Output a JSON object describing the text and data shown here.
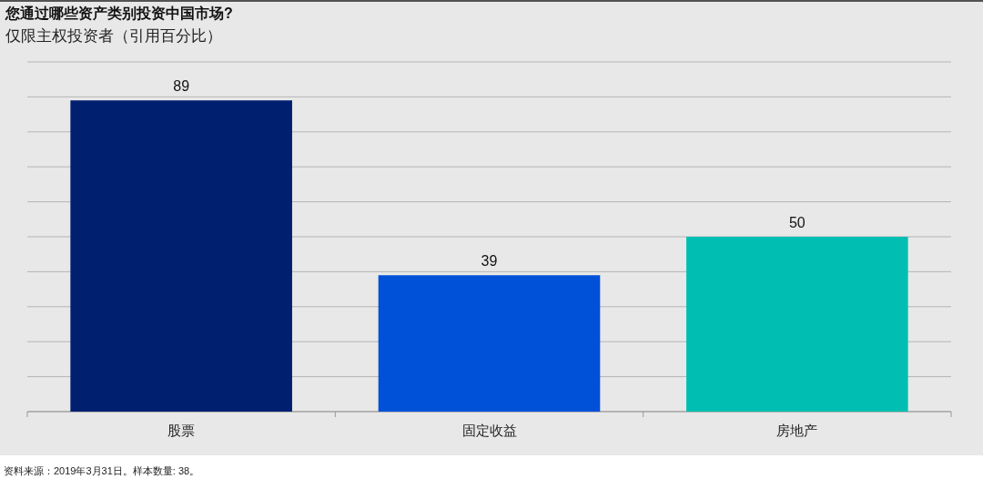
{
  "chart_data": {
    "type": "bar",
    "title": "您通过哪些资产类别投资中国市场?",
    "subtitle": "仅限主权投资者（引用百分比）",
    "categories": [
      "股票",
      "固定收益",
      "房地产"
    ],
    "values": [
      89,
      39,
      50
    ],
    "colors": [
      "#001f6e",
      "#0050d8",
      "#00bfb2"
    ],
    "ylim": [
      0,
      100
    ],
    "yticks": [
      {
        "value": 0,
        "label": null
      },
      {
        "value": 10,
        "label": null
      },
      {
        "value": 20,
        "label": null
      },
      {
        "value": 30,
        "label": null
      },
      {
        "value": 40,
        "label": null
      },
      {
        "value": 50,
        "label": null
      },
      {
        "value": 60,
        "label": null
      },
      {
        "value": 70,
        "label": null
      },
      {
        "value": 80,
        "label": null
      },
      {
        "value": 90,
        "label": null
      },
      {
        "value": 100,
        "label": null
      }
    ],
    "tick_labels": "x",
    "grid": "y",
    "data_labels": true,
    "annotations": [
      "资料来源：2019年3月31日。样本数量: 38。"
    ]
  }
}
